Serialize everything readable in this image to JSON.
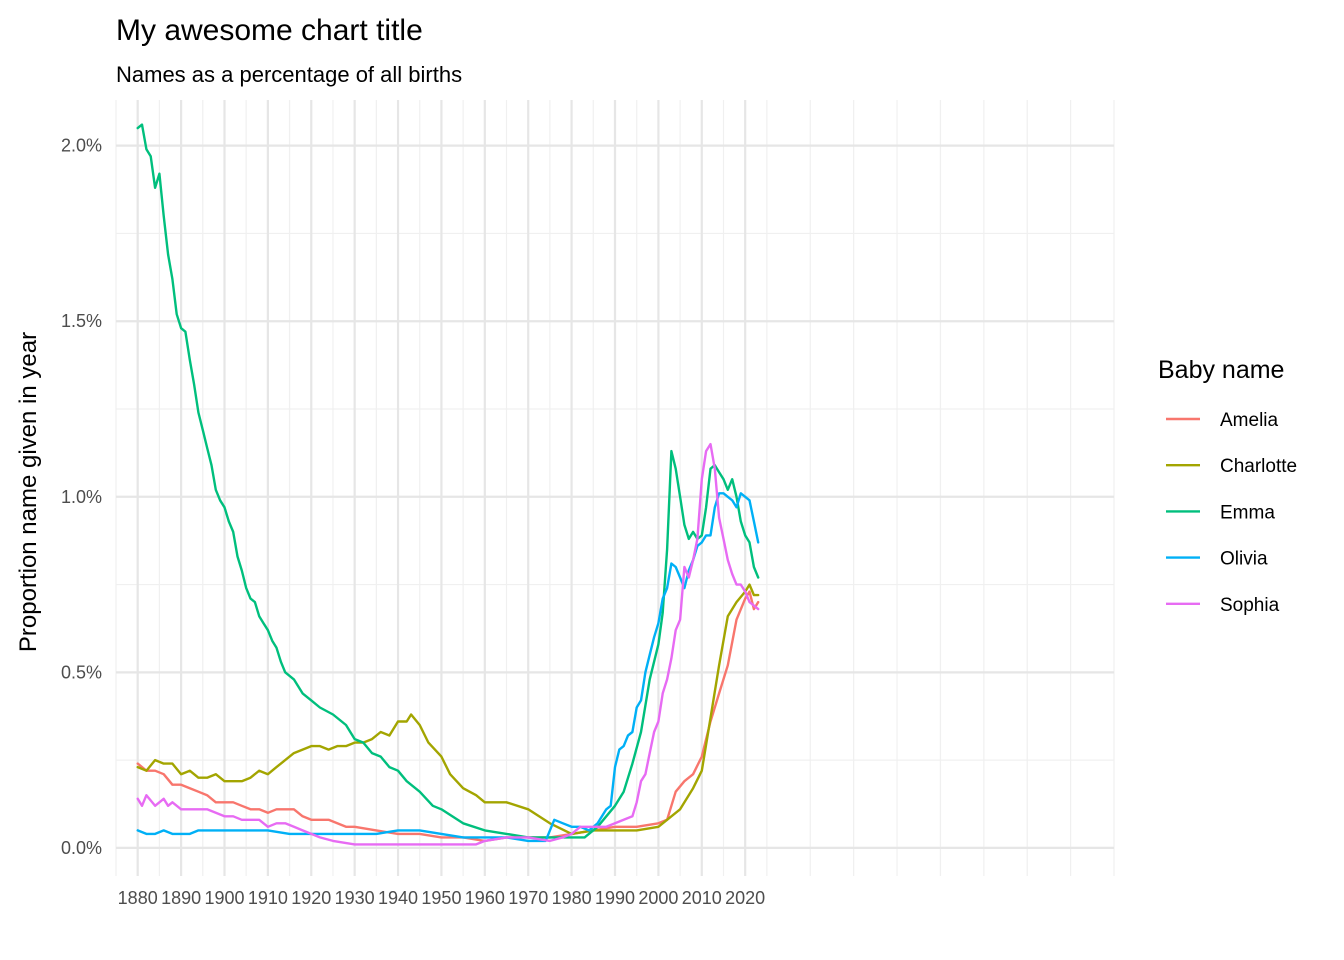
{
  "chart_data": {
    "type": "line",
    "title": "My awesome chart title",
    "subtitle": "Names as a percentage of all births",
    "ylabel": "Proportion name given in year",
    "xlabel": "",
    "xlim": [
      1875,
      2105
    ],
    "ylim": [
      -0.0008,
      0.0213
    ],
    "x_ticks": [
      1880,
      1890,
      1900,
      1910,
      1920,
      1930,
      1940,
      1950,
      1960,
      1970,
      1980,
      1990,
      2000,
      2010,
      2020
    ],
    "y_ticks": [
      {
        "value": 0.0,
        "label": "0.0%"
      },
      {
        "value": 0.005,
        "label": "0.5%"
      },
      {
        "value": 0.01,
        "label": "1.0%"
      },
      {
        "value": 0.015,
        "label": "1.5%"
      },
      {
        "value": 0.02,
        "label": "2.0%"
      }
    ],
    "grid": true,
    "legend": {
      "title": "Baby name",
      "position": "right"
    },
    "series": [
      {
        "name": "Amelia",
        "color": "#F8766D",
        "x": [
          1880,
          1882,
          1884,
          1886,
          1888,
          1890,
          1892,
          1894,
          1896,
          1898,
          1900,
          1902,
          1904,
          1906,
          1908,
          1910,
          1912,
          1914,
          1916,
          1918,
          1920,
          1922,
          1924,
          1926,
          1928,
          1930,
          1935,
          1940,
          1945,
          1950,
          1955,
          1960,
          1965,
          1970,
          1975,
          1980,
          1985,
          1990,
          1995,
          2000,
          2002,
          2004,
          2006,
          2008,
          2010,
          2012,
          2014,
          2016,
          2018,
          2020,
          2021,
          2022,
          2023
        ],
        "y": [
          0.0024,
          0.0022,
          0.0022,
          0.0021,
          0.0018,
          0.0018,
          0.0017,
          0.0016,
          0.0015,
          0.0013,
          0.0013,
          0.0013,
          0.0012,
          0.0011,
          0.0011,
          0.001,
          0.0011,
          0.0011,
          0.0011,
          0.0009,
          0.0008,
          0.0008,
          0.0008,
          0.0007,
          0.0006,
          0.0006,
          0.0005,
          0.0004,
          0.0004,
          0.0003,
          0.0003,
          0.0002,
          0.0003,
          0.0003,
          0.0003,
          0.0004,
          0.0005,
          0.0006,
          0.0006,
          0.0007,
          0.0008,
          0.0016,
          0.0019,
          0.0021,
          0.0026,
          0.0036,
          0.0044,
          0.0052,
          0.0065,
          0.0071,
          0.0073,
          0.0068,
          0.007
        ]
      },
      {
        "name": "Charlotte",
        "color": "#A3A500",
        "x": [
          1880,
          1882,
          1884,
          1886,
          1888,
          1890,
          1892,
          1894,
          1896,
          1898,
          1900,
          1902,
          1904,
          1906,
          1908,
          1910,
          1912,
          1914,
          1916,
          1918,
          1920,
          1922,
          1924,
          1926,
          1928,
          1930,
          1932,
          1934,
          1936,
          1938,
          1940,
          1942,
          1943,
          1945,
          1947,
          1950,
          1952,
          1955,
          1958,
          1960,
          1965,
          1970,
          1975,
          1980,
          1985,
          1990,
          1995,
          2000,
          2005,
          2008,
          2010,
          2012,
          2014,
          2016,
          2018,
          2020,
          2021,
          2022,
          2023
        ],
        "y": [
          0.0023,
          0.0022,
          0.0025,
          0.0024,
          0.0024,
          0.0021,
          0.0022,
          0.002,
          0.002,
          0.0021,
          0.0019,
          0.0019,
          0.0019,
          0.002,
          0.0022,
          0.0021,
          0.0023,
          0.0025,
          0.0027,
          0.0028,
          0.0029,
          0.0029,
          0.0028,
          0.0029,
          0.0029,
          0.003,
          0.003,
          0.0031,
          0.0033,
          0.0032,
          0.0036,
          0.0036,
          0.0038,
          0.0035,
          0.003,
          0.0026,
          0.0021,
          0.0017,
          0.0015,
          0.0013,
          0.0013,
          0.0011,
          0.0007,
          0.0004,
          0.0005,
          0.0005,
          0.0005,
          0.0006,
          0.0011,
          0.0017,
          0.0022,
          0.0037,
          0.0052,
          0.0066,
          0.007,
          0.0073,
          0.0075,
          0.0072,
          0.0072
        ]
      },
      {
        "name": "Emma",
        "color": "#00BF7D",
        "x": [
          1880,
          1881,
          1882,
          1883,
          1884,
          1885,
          1886,
          1887,
          1888,
          1889,
          1890,
          1891,
          1892,
          1893,
          1894,
          1895,
          1896,
          1897,
          1898,
          1899,
          1900,
          1901,
          1902,
          1903,
          1904,
          1905,
          1906,
          1907,
          1908,
          1909,
          1910,
          1911,
          1912,
          1913,
          1914,
          1916,
          1918,
          1920,
          1922,
          1925,
          1928,
          1930,
          1932,
          1934,
          1936,
          1938,
          1940,
          1942,
          1945,
          1948,
          1950,
          1955,
          1960,
          1965,
          1970,
          1975,
          1980,
          1983,
          1986,
          1990,
          1992,
          1994,
          1996,
          1998,
          2000,
          2001,
          2002,
          2003,
          2004,
          2005,
          2006,
          2007,
          2008,
          2009,
          2010,
          2011,
          2012,
          2013,
          2014,
          2015,
          2016,
          2017,
          2018,
          2019,
          2020,
          2021,
          2022,
          2023
        ],
        "y": [
          0.0205,
          0.0206,
          0.0199,
          0.0197,
          0.0188,
          0.0192,
          0.018,
          0.0169,
          0.0162,
          0.0152,
          0.0148,
          0.0147,
          0.0139,
          0.0132,
          0.0124,
          0.0119,
          0.0114,
          0.0109,
          0.0102,
          0.0099,
          0.0097,
          0.0093,
          0.009,
          0.0083,
          0.0079,
          0.0074,
          0.0071,
          0.007,
          0.0066,
          0.0064,
          0.0062,
          0.0059,
          0.0057,
          0.0053,
          0.005,
          0.0048,
          0.0044,
          0.0042,
          0.004,
          0.0038,
          0.0035,
          0.0031,
          0.003,
          0.0027,
          0.0026,
          0.0023,
          0.0022,
          0.0019,
          0.0016,
          0.0012,
          0.0011,
          0.0007,
          0.0005,
          0.0004,
          0.0003,
          0.0003,
          0.0003,
          0.0003,
          0.0006,
          0.0012,
          0.0016,
          0.0024,
          0.0033,
          0.0048,
          0.0058,
          0.0067,
          0.0085,
          0.0113,
          0.0108,
          0.01,
          0.0092,
          0.0088,
          0.009,
          0.0088,
          0.0089,
          0.0097,
          0.0108,
          0.0109,
          0.0107,
          0.0105,
          0.0102,
          0.0105,
          0.01,
          0.0093,
          0.0089,
          0.0087,
          0.008,
          0.0077
        ]
      },
      {
        "name": "Olivia",
        "color": "#00B0F6",
        "x": [
          1880,
          1882,
          1884,
          1886,
          1888,
          1890,
          1892,
          1894,
          1896,
          1898,
          1900,
          1905,
          1910,
          1915,
          1920,
          1925,
          1930,
          1935,
          1940,
          1945,
          1950,
          1955,
          1960,
          1965,
          1970,
          1974,
          1976,
          1978,
          1980,
          1982,
          1984,
          1986,
          1988,
          1989,
          1990,
          1991,
          1992,
          1993,
          1994,
          1995,
          1996,
          1997,
          1998,
          1999,
          2000,
          2001,
          2002,
          2003,
          2004,
          2005,
          2006,
          2007,
          2008,
          2009,
          2010,
          2011,
          2012,
          2013,
          2014,
          2015,
          2016,
          2017,
          2018,
          2019,
          2020,
          2021,
          2022,
          2023
        ],
        "y": [
          0.0005,
          0.0004,
          0.0004,
          0.0005,
          0.0004,
          0.0004,
          0.0004,
          0.0005,
          0.0005,
          0.0005,
          0.0005,
          0.0005,
          0.0005,
          0.0004,
          0.0004,
          0.0004,
          0.0004,
          0.0004,
          0.0005,
          0.0005,
          0.0004,
          0.0003,
          0.0003,
          0.0003,
          0.0002,
          0.0002,
          0.0008,
          0.0007,
          0.0006,
          0.0006,
          0.0005,
          0.0007,
          0.0011,
          0.0012,
          0.0023,
          0.0028,
          0.0029,
          0.0032,
          0.0033,
          0.004,
          0.0042,
          0.005,
          0.0055,
          0.006,
          0.0064,
          0.0071,
          0.0074,
          0.0081,
          0.008,
          0.0077,
          0.0074,
          0.0079,
          0.0082,
          0.0086,
          0.0087,
          0.0089,
          0.0089,
          0.0097,
          0.0101,
          0.0101,
          0.01,
          0.0099,
          0.0097,
          0.0101,
          0.01,
          0.0099,
          0.0093,
          0.0087
        ]
      },
      {
        "name": "Sophia",
        "color": "#E76BF3",
        "x": [
          1880,
          1881,
          1882,
          1884,
          1886,
          1887,
          1888,
          1890,
          1892,
          1894,
          1896,
          1898,
          1900,
          1902,
          1904,
          1906,
          1908,
          1910,
          1912,
          1914,
          1916,
          1918,
          1920,
          1922,
          1925,
          1930,
          1935,
          1940,
          1945,
          1950,
          1955,
          1958,
          1960,
          1965,
          1970,
          1975,
          1978,
          1980,
          1982,
          1985,
          1988,
          1990,
          1992,
          1994,
          1995,
          1996,
          1997,
          1998,
          1999,
          2000,
          2001,
          2002,
          2003,
          2004,
          2005,
          2006,
          2007,
          2008,
          2009,
          2010,
          2011,
          2012,
          2013,
          2014,
          2015,
          2016,
          2017,
          2018,
          2019,
          2020,
          2021,
          2022,
          2023
        ],
        "y": [
          0.0014,
          0.0012,
          0.0015,
          0.0012,
          0.0014,
          0.0012,
          0.0013,
          0.0011,
          0.0011,
          0.0011,
          0.0011,
          0.001,
          0.0009,
          0.0009,
          0.0008,
          0.0008,
          0.0008,
          0.0006,
          0.0007,
          0.0007,
          0.0006,
          0.0005,
          0.0004,
          0.0003,
          0.0002,
          0.0001,
          0.0001,
          0.0001,
          0.0001,
          0.0001,
          0.0001,
          0.0001,
          0.0002,
          0.0003,
          0.0003,
          0.0002,
          0.0003,
          0.0004,
          0.0006,
          0.0006,
          0.0006,
          0.0007,
          0.0008,
          0.0009,
          0.0013,
          0.0019,
          0.0021,
          0.0027,
          0.0033,
          0.0036,
          0.0044,
          0.0048,
          0.0054,
          0.0062,
          0.0065,
          0.008,
          0.0077,
          0.0082,
          0.0088,
          0.0105,
          0.0113,
          0.0115,
          0.0108,
          0.0094,
          0.0088,
          0.0082,
          0.0078,
          0.0075,
          0.0075,
          0.0073,
          0.007,
          0.0069,
          0.0068
        ]
      }
    ]
  }
}
